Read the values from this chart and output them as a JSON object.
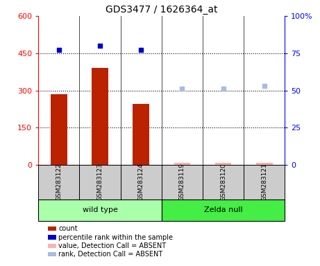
{
  "title": "GDS3477 / 1626364_at",
  "samples": [
    "GSM283122",
    "GSM283123",
    "GSM283124",
    "GSM283119",
    "GSM283120",
    "GSM283121"
  ],
  "groups": [
    "wild type",
    "wild type",
    "wild type",
    "Zelda null",
    "Zelda null",
    "Zelda null"
  ],
  "bar_color": "#BB2200",
  "bar_color_absent": "#FFB0B0",
  "dot_color": "#0000CC",
  "dot_color_absent": "#AABBDD",
  "bar_values": [
    285,
    390,
    245,
    8,
    8,
    8
  ],
  "dot_values_right": [
    77,
    80,
    77,
    null,
    null,
    null
  ],
  "dot_values_right_absent": [
    null,
    null,
    null,
    51,
    51,
    53
  ],
  "absent_bar_values": [
    null,
    null,
    null,
    8,
    8,
    8
  ],
  "ylim_left": [
    0,
    600
  ],
  "ylim_right": [
    0,
    100
  ],
  "yticks_left": [
    0,
    150,
    300,
    450,
    600
  ],
  "ytick_labels_left": [
    "0",
    "150",
    "300",
    "450",
    "600"
  ],
  "yticks_right": [
    0,
    25,
    50,
    75,
    100
  ],
  "ytick_labels_right": [
    "0",
    "25",
    "50",
    "75",
    "100%"
  ],
  "hlines": [
    150,
    300,
    450
  ],
  "bar_width": 0.4,
  "cell_color": "#CCCCCC",
  "wt_color": "#AAFFAA",
  "zn_color": "#44EE44",
  "legend_items": [
    {
      "label": "count",
      "color": "#BB2200"
    },
    {
      "label": "percentile rank within the sample",
      "color": "#0000CC"
    },
    {
      "label": "value, Detection Call = ABSENT",
      "color": "#FFB0B0"
    },
    {
      "label": "rank, Detection Call = ABSENT",
      "color": "#AABBDD"
    }
  ]
}
